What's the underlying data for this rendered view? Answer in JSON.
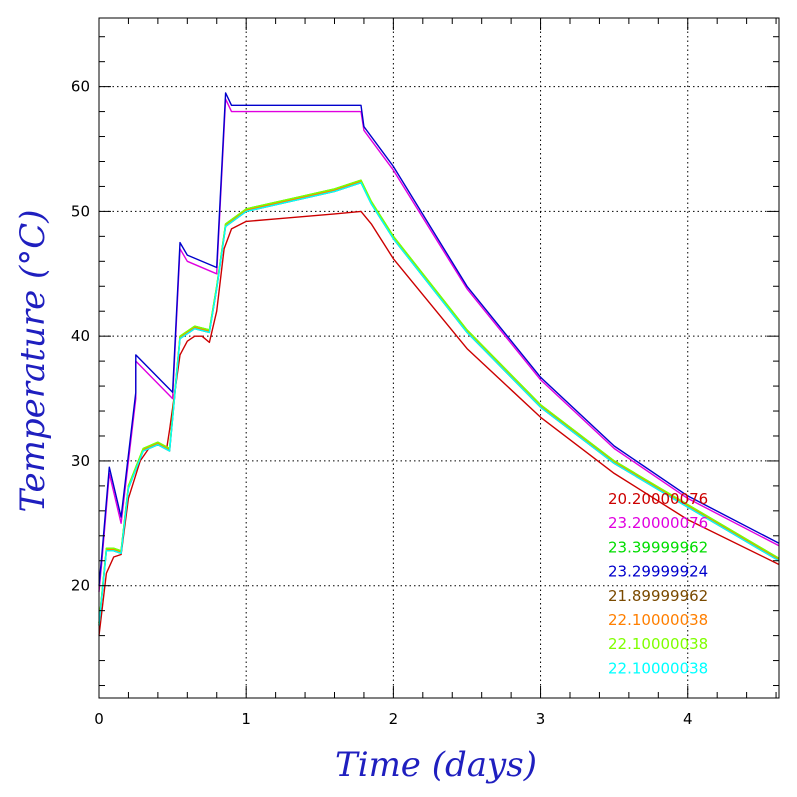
{
  "chart_data": {
    "type": "line",
    "xlabel": "Time (days)",
    "ylabel": "Temperature (°C)",
    "xlim": [
      0,
      4.62
    ],
    "ylim": [
      11,
      65.5
    ],
    "x_ticks": [
      0,
      1,
      2,
      3,
      4
    ],
    "y_ticks": [
      20,
      30,
      40,
      50,
      60
    ],
    "x_tick_labels": [
      "0",
      "1",
      "2",
      "3",
      "4"
    ],
    "y_tick_labels": [
      "20",
      "30",
      "40",
      "50",
      "60"
    ],
    "grid": true,
    "legend_position": "bottom-right",
    "series": [
      {
        "name": "20.20000076",
        "color": "#cc0000",
        "x": [
          0,
          0.05,
          0.1,
          0.15,
          0.2,
          0.28,
          0.35,
          0.42,
          0.46,
          0.48,
          0.55,
          0.6,
          0.65,
          0.7,
          0.75,
          0.8,
          0.85,
          0.9,
          1.0,
          1.2,
          1.4,
          1.6,
          1.78,
          1.85,
          2.0,
          2.5,
          3.0,
          3.5,
          4.0,
          4.62
        ],
        "y": [
          16.0,
          21.0,
          22.3,
          22.5,
          27.0,
          30.0,
          31.2,
          31.3,
          31.0,
          32.5,
          38.5,
          39.6,
          40.0,
          40.0,
          39.5,
          42.0,
          47.0,
          48.6,
          49.2,
          49.4,
          49.6,
          49.8,
          50.0,
          49.0,
          46.2,
          39.0,
          33.5,
          29.0,
          25.3,
          21.7
        ]
      },
      {
        "name": "23.20000076",
        "color": "#e000e0",
        "x": [
          0,
          0.02,
          0.07,
          0.15,
          0.25,
          0.25,
          0.5,
          0.55,
          0.6,
          0.8,
          0.86,
          0.9,
          1.78,
          1.8,
          2.0,
          2.5,
          3.0,
          3.5,
          4.0,
          4.62
        ],
        "y": [
          19.5,
          22.0,
          29.0,
          25.0,
          35.0,
          38.0,
          35.0,
          47.0,
          46.0,
          45.0,
          59.0,
          58.0,
          58.0,
          56.5,
          53.3,
          43.8,
          36.5,
          31.0,
          27.0,
          23.2
        ]
      },
      {
        "name": "23.39999962",
        "color": "#00dd00",
        "x": [
          0,
          0.05,
          0.1,
          0.15,
          0.2,
          0.3,
          0.4,
          0.48,
          0.55,
          0.65,
          0.75,
          0.8,
          0.86,
          1.0,
          1.3,
          1.6,
          1.78,
          1.85,
          2.0,
          2.5,
          3.0,
          3.5,
          4.0,
          4.62
        ],
        "y": [
          17.0,
          23.0,
          23.0,
          22.8,
          28.0,
          31.0,
          31.5,
          31.0,
          40.0,
          40.8,
          40.5,
          44.0,
          49.0,
          50.2,
          51.0,
          51.8,
          52.5,
          50.8,
          48.0,
          40.5,
          34.5,
          30.0,
          26.5,
          22.2
        ]
      },
      {
        "name": "23.29999924",
        "color": "#0000cc",
        "x": [
          0,
          0.02,
          0.07,
          0.15,
          0.25,
          0.25,
          0.5,
          0.55,
          0.6,
          0.8,
          0.86,
          0.9,
          1.78,
          1.8,
          2.0,
          2.5,
          3.0,
          3.5,
          4.0,
          4.62
        ],
        "y": [
          20.0,
          22.5,
          29.5,
          25.5,
          35.5,
          38.5,
          35.5,
          47.5,
          46.5,
          45.5,
          59.5,
          58.5,
          58.5,
          56.8,
          53.6,
          44.0,
          36.7,
          31.2,
          27.2,
          23.4
        ]
      },
      {
        "name": "21.89999962",
        "color": "#7a4a00",
        "x": [
          0,
          0.05,
          0.1,
          0.15,
          0.2,
          0.3,
          0.4,
          0.48,
          0.55,
          0.65,
          0.75,
          0.8,
          0.86,
          1.0,
          1.3,
          1.6,
          1.78,
          1.85,
          2.0,
          2.5,
          3.0,
          3.5,
          4.0,
          4.62
        ],
        "y": [
          16.8,
          22.8,
          22.8,
          22.6,
          27.8,
          30.8,
          31.3,
          30.8,
          39.8,
          40.6,
          40.3,
          43.8,
          48.8,
          50.0,
          50.8,
          51.6,
          52.3,
          50.6,
          47.8,
          40.3,
          34.3,
          29.8,
          26.3,
          22.0
        ]
      },
      {
        "name": "22.10000038",
        "color": "#ff7f00",
        "x": [
          0,
          0.05,
          0.1,
          0.15,
          0.2,
          0.3,
          0.4,
          0.48,
          0.55,
          0.65,
          0.75,
          0.8,
          0.86,
          1.0,
          1.3,
          1.6,
          1.78,
          1.85,
          2.0,
          2.5,
          3.0,
          3.5,
          4.0,
          4.62
        ],
        "y": [
          16.9,
          22.9,
          22.9,
          22.7,
          27.9,
          30.9,
          31.4,
          30.9,
          39.9,
          40.7,
          40.4,
          43.9,
          48.9,
          50.1,
          50.9,
          51.7,
          52.4,
          50.7,
          47.9,
          40.4,
          34.4,
          29.9,
          26.4,
          22.1
        ]
      },
      {
        "name": "22.10000038",
        "color": "#7fff00",
        "x": [
          0,
          0.05,
          0.1,
          0.15,
          0.2,
          0.3,
          0.4,
          0.48,
          0.55,
          0.65,
          0.75,
          0.8,
          0.86,
          1.0,
          1.3,
          1.6,
          1.78,
          1.85,
          2.0,
          2.5,
          3.0,
          3.5,
          4.0,
          4.62
        ],
        "y": [
          17.0,
          23.0,
          23.0,
          22.8,
          28.0,
          31.0,
          31.5,
          31.0,
          40.0,
          40.8,
          40.5,
          44.0,
          49.0,
          50.2,
          51.0,
          51.8,
          52.5,
          50.8,
          48.0,
          40.5,
          34.5,
          30.0,
          26.5,
          22.2
        ]
      },
      {
        "name": "22.10000038",
        "color": "#00ffff",
        "x": [
          0,
          0.05,
          0.1,
          0.15,
          0.2,
          0.3,
          0.4,
          0.48,
          0.55,
          0.65,
          0.75,
          0.8,
          0.86,
          1.0,
          1.3,
          1.6,
          1.78,
          1.85,
          2.0,
          2.5,
          3.0,
          3.5,
          4.0,
          4.62
        ],
        "y": [
          16.8,
          22.8,
          22.8,
          22.6,
          27.8,
          30.8,
          31.3,
          30.8,
          39.8,
          40.6,
          40.3,
          43.8,
          48.8,
          50.0,
          50.8,
          51.6,
          52.3,
          50.6,
          47.8,
          40.3,
          34.3,
          29.8,
          26.3,
          22.0
        ]
      }
    ]
  }
}
